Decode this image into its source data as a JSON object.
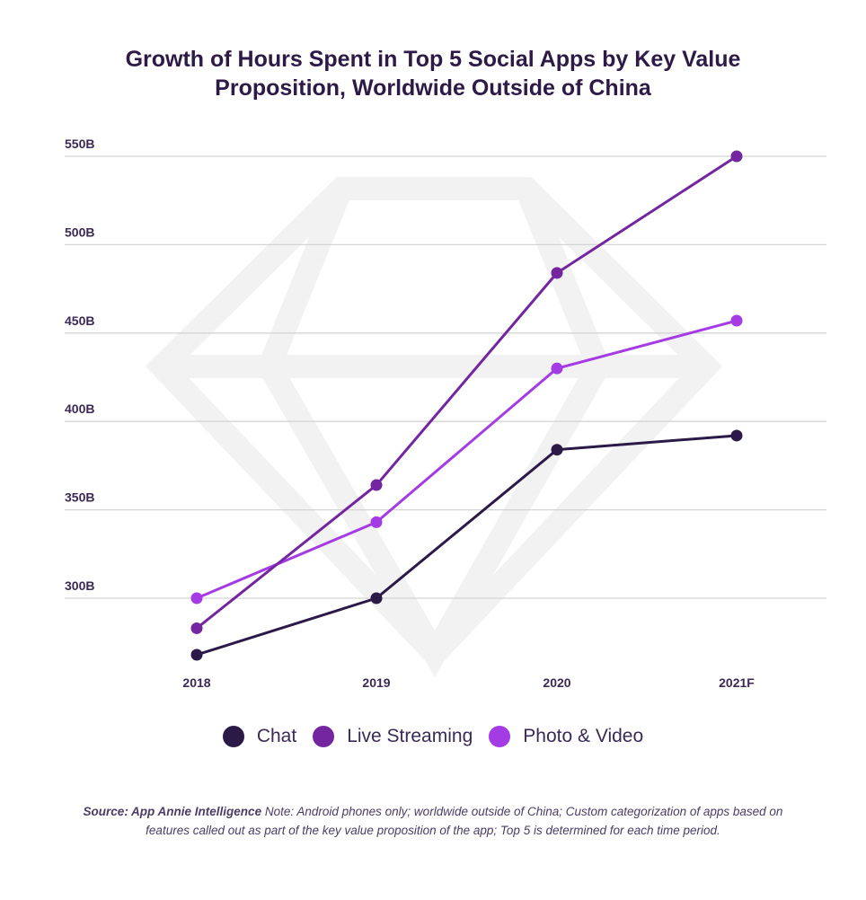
{
  "title_line1": "Growth of Hours Spent in Top 5 Social Apps by Key Value",
  "title_line2": "Proposition, Worldwide Outside of China",
  "colors": {
    "chat": "#2b1a47",
    "live_streaming": "#7326a0",
    "photo_video": "#a43be5",
    "grid": "#d4d4d4",
    "axis_text": "#3a2a55"
  },
  "chart_data": {
    "type": "line",
    "x": [
      "2018",
      "2019",
      "2020",
      "2021F"
    ],
    "y_ticks": [
      "300B",
      "350B",
      "400B",
      "450B",
      "500B",
      "550B"
    ],
    "y_tick_values": [
      300,
      350,
      400,
      450,
      500,
      550
    ],
    "ylim": [
      267,
      555
    ],
    "units": "B",
    "series": [
      {
        "name": "Chat",
        "color": "#2b1a47",
        "values": [
          268,
          300,
          384,
          392
        ]
      },
      {
        "name": "Live Streaming",
        "color": "#7326a0",
        "values": [
          283,
          364,
          484,
          550
        ]
      },
      {
        "name": "Photo & Video",
        "color": "#a43be5",
        "values": [
          300,
          343,
          430,
          457
        ]
      }
    ],
    "legend_position": "bottom-center",
    "grid": true
  },
  "footnote": {
    "source": "Source: App Annie Intelligence",
    "note": " Note: Android phones only;  worldwide outside of China; Custom categorization of apps based on features called out as part of the key value proposition of the app; Top 5 is determined for each time period."
  }
}
